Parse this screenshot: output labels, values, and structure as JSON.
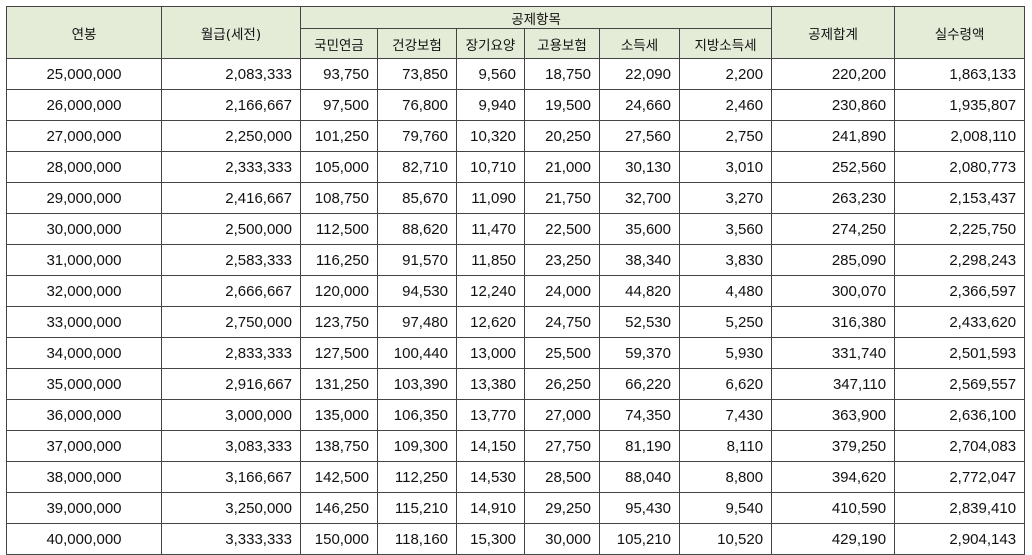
{
  "headers": {
    "annual": "연봉",
    "monthly": "월급(세전)",
    "deduction_group": "공제항목",
    "pension": "국민연금",
    "health": "건강보험",
    "longterm": "장기요양",
    "employment": "고용보험",
    "income_tax": "소득세",
    "local_tax": "지방소득세",
    "total_deduction": "공제합계",
    "net_pay": "실수령액"
  },
  "rows": [
    [
      "25,000,000",
      "2,083,333",
      "93,750",
      "73,850",
      "9,560",
      "18,750",
      "22,090",
      "2,200",
      "220,200",
      "1,863,133"
    ],
    [
      "26,000,000",
      "2,166,667",
      "97,500",
      "76,800",
      "9,940",
      "19,500",
      "24,660",
      "2,460",
      "230,860",
      "1,935,807"
    ],
    [
      "27,000,000",
      "2,250,000",
      "101,250",
      "79,760",
      "10,320",
      "20,250",
      "27,560",
      "2,750",
      "241,890",
      "2,008,110"
    ],
    [
      "28,000,000",
      "2,333,333",
      "105,000",
      "82,710",
      "10,710",
      "21,000",
      "30,130",
      "3,010",
      "252,560",
      "2,080,773"
    ],
    [
      "29,000,000",
      "2,416,667",
      "108,750",
      "85,670",
      "11,090",
      "21,750",
      "32,700",
      "3,270",
      "263,230",
      "2,153,437"
    ],
    [
      "30,000,000",
      "2,500,000",
      "112,500",
      "88,620",
      "11,470",
      "22,500",
      "35,600",
      "3,560",
      "274,250",
      "2,225,750"
    ],
    [
      "31,000,000",
      "2,583,333",
      "116,250",
      "91,570",
      "11,850",
      "23,250",
      "38,340",
      "3,830",
      "285,090",
      "2,298,243"
    ],
    [
      "32,000,000",
      "2,666,667",
      "120,000",
      "94,530",
      "12,240",
      "24,000",
      "44,820",
      "4,480",
      "300,070",
      "2,366,597"
    ],
    [
      "33,000,000",
      "2,750,000",
      "123,750",
      "97,480",
      "12,620",
      "24,750",
      "52,530",
      "5,250",
      "316,380",
      "2,433,620"
    ],
    [
      "34,000,000",
      "2,833,333",
      "127,500",
      "100,440",
      "13,000",
      "25,500",
      "59,370",
      "5,930",
      "331,740",
      "2,501,593"
    ],
    [
      "35,000,000",
      "2,916,667",
      "131,250",
      "103,390",
      "13,380",
      "26,250",
      "66,220",
      "6,620",
      "347,110",
      "2,569,557"
    ],
    [
      "36,000,000",
      "3,000,000",
      "135,000",
      "106,350",
      "13,770",
      "27,000",
      "74,350",
      "7,430",
      "363,900",
      "2,636,100"
    ],
    [
      "37,000,000",
      "3,083,333",
      "138,750",
      "109,300",
      "14,150",
      "27,750",
      "81,190",
      "8,110",
      "379,250",
      "2,704,083"
    ],
    [
      "38,000,000",
      "3,166,667",
      "142,500",
      "112,250",
      "14,530",
      "28,500",
      "88,040",
      "8,800",
      "394,620",
      "2,772,047"
    ],
    [
      "39,000,000",
      "3,250,000",
      "146,250",
      "115,210",
      "14,910",
      "29,250",
      "95,430",
      "9,540",
      "410,590",
      "2,839,410"
    ],
    [
      "40,000,000",
      "3,333,333",
      "150,000",
      "118,160",
      "15,300",
      "30,000",
      "105,210",
      "10,520",
      "429,190",
      "2,904,143"
    ]
  ]
}
